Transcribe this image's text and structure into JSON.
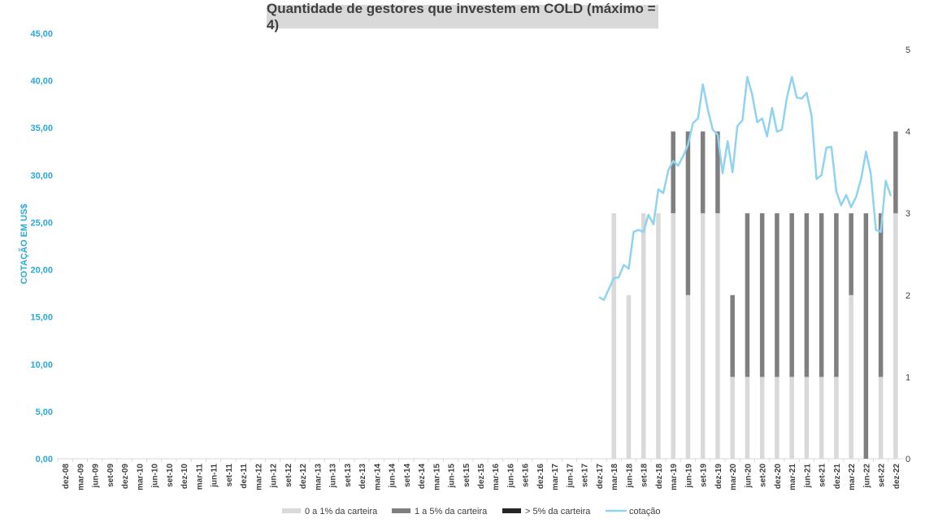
{
  "chart_data": {
    "type": "bar+line",
    "title": "Quantidade de gestores que investem em COLD (máximo = 4)",
    "ylabel_left": "COTAÇÃO EM US$",
    "ylim_left": [
      0,
      45
    ],
    "yticks_left": [
      "0,00",
      "5,00",
      "10,00",
      "15,00",
      "20,00",
      "25,00",
      "30,00",
      "35,00",
      "40,00",
      "45,00"
    ],
    "ylim_right": [
      0,
      5
    ],
    "yticks_right": [
      "0",
      "1",
      "2",
      "3",
      "4",
      "5"
    ],
    "categories": [
      "dez-08",
      "mar-09",
      "jun-09",
      "set-09",
      "dez-09",
      "mar-10",
      "jun-10",
      "set-10",
      "dez-10",
      "mar-11",
      "jun-11",
      "set-11",
      "dez-11",
      "mar-12",
      "jun-12",
      "set-12",
      "dez-12",
      "mar-13",
      "jun-13",
      "set-13",
      "dez-13",
      "mar-14",
      "jun-14",
      "set-14",
      "dez-14",
      "mar-15",
      "jun-15",
      "set-15",
      "dez-15",
      "mar-16",
      "jun-16",
      "set-16",
      "dez-16",
      "mar-17",
      "jun-17",
      "set-17",
      "dez-17",
      "mar-18",
      "jun-18",
      "set-18",
      "dez-18",
      "mar-19",
      "jun-19",
      "set-19",
      "dez-19",
      "mar-20",
      "jun-20",
      "set-20",
      "dez-20",
      "mar-21",
      "jun-21",
      "set-21",
      "dez-21",
      "mar-22",
      "jun-22",
      "set-22",
      "dez-22"
    ],
    "series": [
      {
        "name": "0 a 1% da carteira",
        "color": "#d9d9d9",
        "values": [
          0,
          0,
          0,
          0,
          0,
          0,
          0,
          0,
          0,
          0,
          0,
          0,
          0,
          0,
          0,
          0,
          0,
          0,
          0,
          0,
          0,
          0,
          0,
          0,
          0,
          0,
          0,
          0,
          0,
          0,
          0,
          0,
          0,
          0,
          0,
          0,
          0,
          3,
          2,
          3,
          3,
          3,
          2,
          3,
          3,
          1,
          1,
          1,
          1,
          1,
          1,
          1,
          1,
          2,
          0,
          1,
          3
        ]
      },
      {
        "name": "1 a 5% da carteira",
        "color": "#7f7f7f",
        "values": [
          0,
          0,
          0,
          0,
          0,
          0,
          0,
          0,
          0,
          0,
          0,
          0,
          0,
          0,
          0,
          0,
          0,
          0,
          0,
          0,
          0,
          0,
          0,
          0,
          0,
          0,
          0,
          0,
          0,
          0,
          0,
          0,
          0,
          0,
          0,
          0,
          0,
          0,
          0,
          0,
          0,
          1,
          2,
          1,
          1,
          1,
          2,
          2,
          2,
          2,
          2,
          2,
          2,
          1,
          3,
          2,
          1
        ]
      },
      {
        "name": "> 5% da carteira",
        "color": "#262626",
        "values": [
          0,
          0,
          0,
          0,
          0,
          0,
          0,
          0,
          0,
          0,
          0,
          0,
          0,
          0,
          0,
          0,
          0,
          0,
          0,
          0,
          0,
          0,
          0,
          0,
          0,
          0,
          0,
          0,
          0,
          0,
          0,
          0,
          0,
          0,
          0,
          0,
          0,
          0,
          0,
          0,
          0,
          0,
          0,
          0,
          0,
          0,
          0,
          0,
          0,
          0,
          0,
          0,
          0,
          0,
          0,
          0,
          0
        ]
      }
    ],
    "line": {
      "name": "cotação",
      "color": "#8fd3f0",
      "points": [
        [
          36.0,
          17.1
        ],
        [
          36.33,
          16.8
        ],
        [
          36.67,
          18.0
        ],
        [
          37.0,
          19.1
        ],
        [
          37.33,
          19.2
        ],
        [
          37.67,
          20.5
        ],
        [
          38.0,
          20.1
        ],
        [
          38.33,
          24.0
        ],
        [
          38.67,
          24.2
        ],
        [
          39.0,
          24.0
        ],
        [
          39.33,
          25.8
        ],
        [
          39.67,
          24.8
        ],
        [
          40.0,
          28.5
        ],
        [
          40.33,
          28.1
        ],
        [
          40.67,
          30.5
        ],
        [
          41.0,
          31.5
        ],
        [
          41.33,
          31.0
        ],
        [
          41.67,
          32.0
        ],
        [
          42.0,
          33.2
        ],
        [
          42.33,
          35.5
        ],
        [
          42.67,
          36.0
        ],
        [
          43.0,
          39.6
        ],
        [
          43.33,
          37.0
        ],
        [
          43.67,
          34.8
        ],
        [
          44.0,
          34.3
        ],
        [
          44.33,
          30.2
        ],
        [
          44.67,
          33.6
        ],
        [
          45.0,
          30.3
        ],
        [
          45.33,
          35.2
        ],
        [
          45.67,
          35.8
        ],
        [
          46.0,
          40.4
        ],
        [
          46.33,
          38.5
        ],
        [
          46.67,
          35.6
        ],
        [
          47.0,
          36.0
        ],
        [
          47.33,
          34.1
        ],
        [
          47.67,
          37.1
        ],
        [
          48.0,
          34.6
        ],
        [
          48.33,
          34.8
        ],
        [
          48.67,
          38.2
        ],
        [
          49.0,
          40.4
        ],
        [
          49.33,
          38.2
        ],
        [
          49.67,
          38.1
        ],
        [
          50.0,
          38.7
        ],
        [
          50.33,
          36.3
        ],
        [
          50.67,
          29.6
        ],
        [
          51.0,
          30.0
        ],
        [
          51.33,
          32.9
        ],
        [
          51.67,
          33.0
        ],
        [
          52.0,
          28.3
        ],
        [
          52.33,
          26.8
        ],
        [
          52.67,
          27.9
        ],
        [
          53.0,
          26.6
        ],
        [
          53.33,
          27.7
        ],
        [
          53.67,
          29.6
        ],
        [
          54.0,
          32.5
        ],
        [
          54.33,
          30.1
        ],
        [
          54.67,
          24.2
        ],
        [
          55.0,
          24.0
        ],
        [
          55.33,
          29.4
        ],
        [
          55.67,
          27.8
        ]
      ]
    },
    "legend_position": "bottom"
  }
}
